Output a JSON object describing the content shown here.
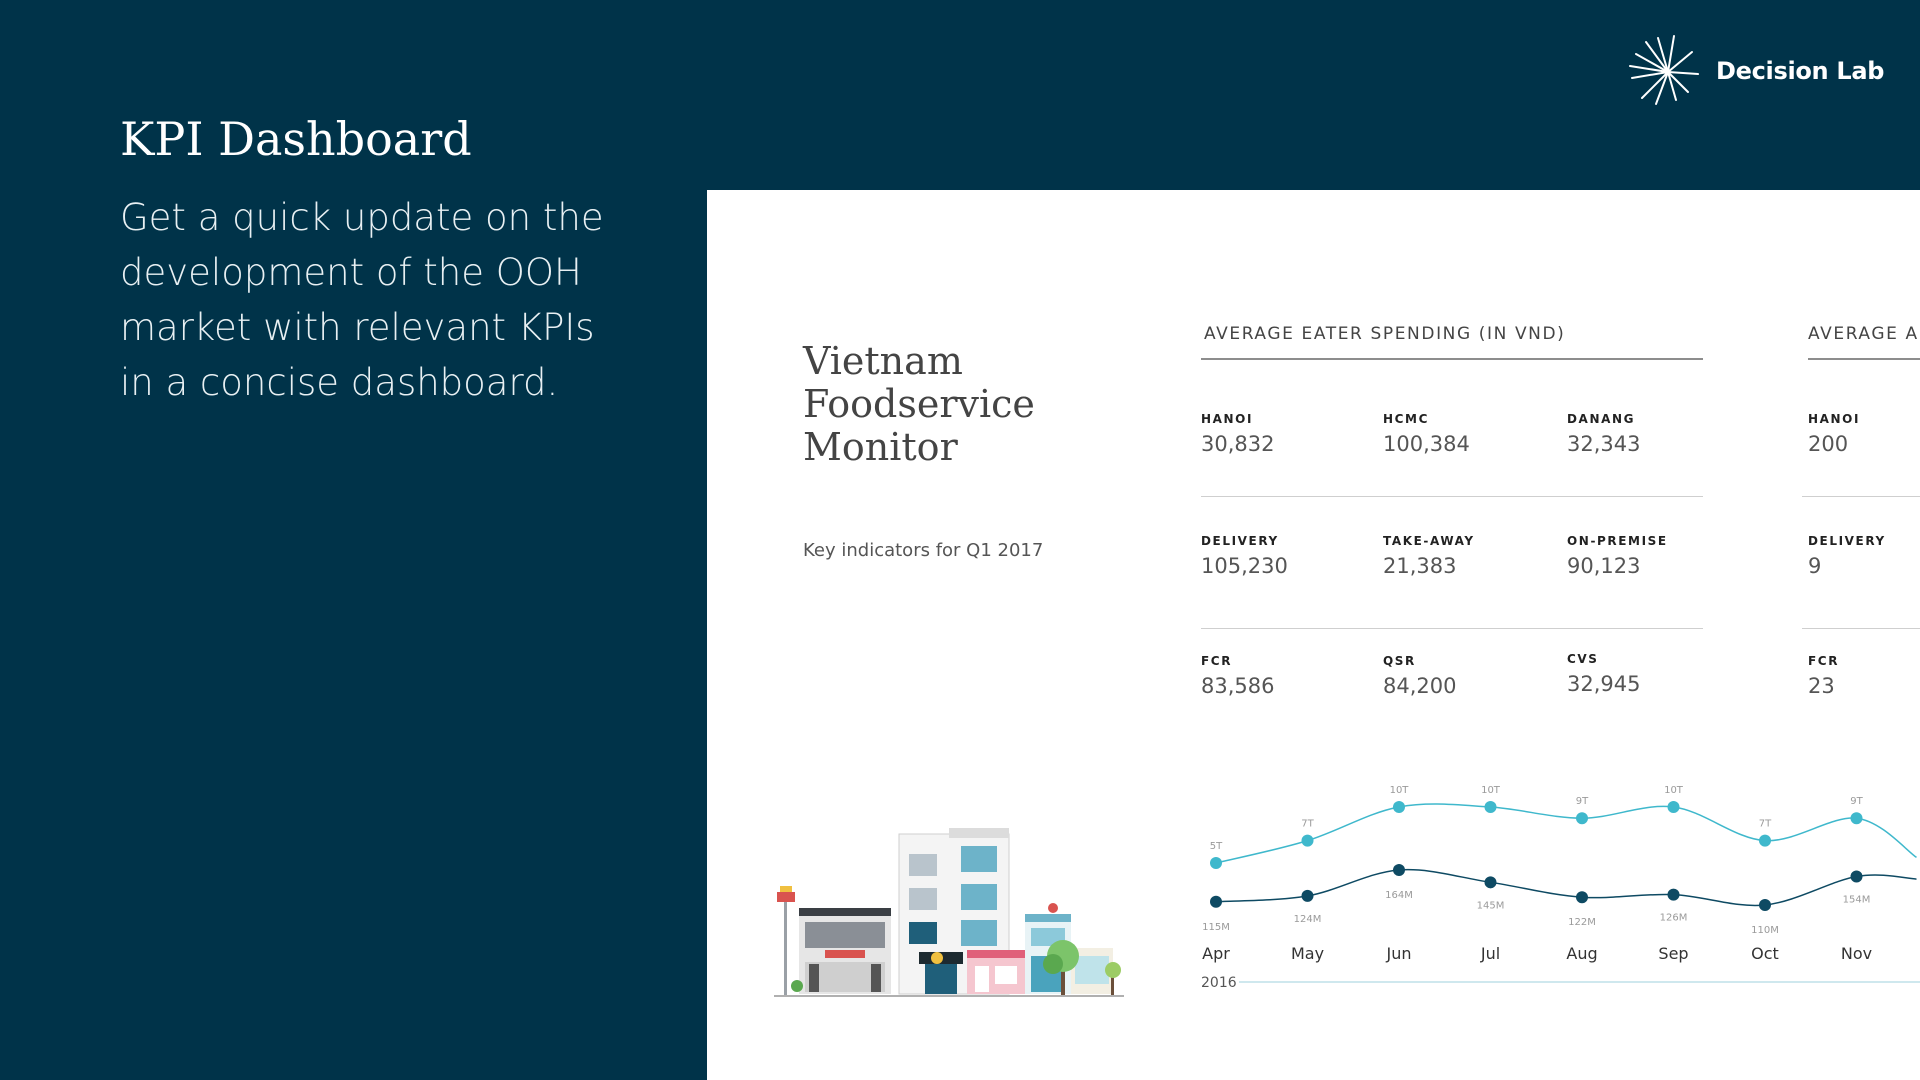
{
  "brand": {
    "name": "Decision Lab"
  },
  "intro": {
    "title": "KPI Dashboard",
    "lines": [
      "Get a quick update on the",
      "development of the OOH",
      "market with relevant KPIs",
      "in a concise dashboard."
    ]
  },
  "panel": {
    "title_lines": [
      "Vietnam",
      "Foodservice",
      "Monitor"
    ],
    "subtitle": "Key indicators for Q1 2017",
    "sections": [
      {
        "title": "AVERAGE EATER SPENDING (IN VND)",
        "rows": [
          [
            {
              "label": "HANOI",
              "value": "30,832"
            },
            {
              "label": "HCMC",
              "value": "100,384"
            },
            {
              "label": "DANANG",
              "value": "32,343"
            }
          ],
          [
            {
              "label": "DELIVERY",
              "value": "105,230"
            },
            {
              "label": "TAKE-AWAY",
              "value": "21,383"
            },
            {
              "label": "ON-PREMISE",
              "value": "90,123"
            }
          ],
          [
            {
              "label": "FCR",
              "value": "83,586"
            },
            {
              "label": "QSR",
              "value": "84,200"
            },
            {
              "label": "CVS",
              "value": "32,945"
            }
          ]
        ]
      },
      {
        "title": "AVERAGE AI",
        "rows": [
          [
            {
              "label": "HANOI",
              "value": "200"
            }
          ],
          [
            {
              "label": "DELIVERY",
              "value": "9"
            }
          ],
          [
            {
              "label": "FCR",
              "value": "23"
            }
          ]
        ]
      }
    ]
  },
  "chart_data": {
    "type": "line",
    "categories": [
      "Apr",
      "May",
      "Jun",
      "Jul",
      "Aug",
      "Sep",
      "Oct",
      "Nov"
    ],
    "series": [
      {
        "values": [
          5,
          7,
          10,
          10,
          9,
          10,
          7,
          9
        ],
        "labels": [
          "5T",
          "7T",
          "10T",
          "10T",
          "9T",
          "10T",
          "7T",
          "9T"
        ],
        "color": "#3fb8cc"
      },
      {
        "values": [
          115,
          124,
          164,
          145,
          122,
          126,
          110,
          154
        ],
        "labels": [
          "115M",
          "124M",
          "164M",
          "145M",
          "122M",
          "126M",
          "110M",
          "154M"
        ],
        "color": "#0e4a63"
      }
    ],
    "year_label": "2016"
  },
  "colors": {
    "background": "#003349",
    "panel": "#ffffff",
    "accent": "#3fb8cc",
    "dark_series": "#0e4a63"
  }
}
